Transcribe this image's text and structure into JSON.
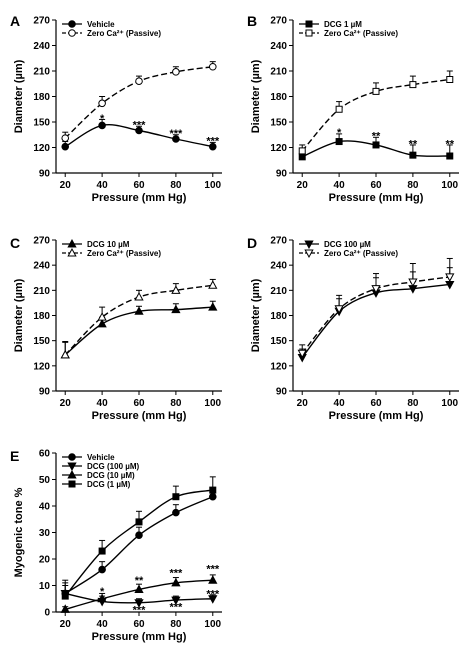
{
  "chart_data": [
    {
      "panel": "A",
      "type": "line",
      "x": [
        20,
        40,
        60,
        80,
        100
      ],
      "xlabel": "Pressure (mm Hg)",
      "ylabel": "Diameter (µm)",
      "xlim": [
        15,
        105
      ],
      "ylim": [
        90,
        270
      ],
      "yticks": [
        90,
        120,
        150,
        180,
        210,
        240,
        270
      ],
      "series": [
        {
          "name": "Vehicle",
          "style": "solid",
          "marker": "circle-filled",
          "values": [
            121,
            146,
            140,
            130,
            121
          ],
          "errors": [
            6,
            7,
            5,
            5,
            5
          ]
        },
        {
          "name": "Zero Ca²⁺ (Passive)",
          "style": "dashed",
          "marker": "circle-open",
          "values": [
            131,
            172,
            198,
            209,
            215
          ],
          "errors": [
            7,
            8,
            6,
            6,
            6
          ]
        }
      ],
      "annotations": [
        {
          "x": 40,
          "text": "*",
          "y": 155
        },
        {
          "x": 60,
          "text": "***",
          "y": 147
        },
        {
          "x": 80,
          "text": "***",
          "y": 137
        },
        {
          "x": 100,
          "text": "***",
          "y": 128
        }
      ],
      "legend": "top-left"
    },
    {
      "panel": "B",
      "type": "line",
      "x": [
        20,
        40,
        60,
        80,
        100
      ],
      "xlabel": "Pressure (mm Hg)",
      "ylabel": "Diameter (µm)",
      "xlim": [
        15,
        105
      ],
      "ylim": [
        90,
        270
      ],
      "yticks": [
        90,
        120,
        150,
        180,
        210,
        240,
        270
      ],
      "series": [
        {
          "name": "DCG 1 µM",
          "style": "solid",
          "marker": "square-filled",
          "values": [
            109,
            127,
            123,
            111,
            110
          ],
          "errors": [
            5,
            9,
            9,
            12,
            13
          ]
        },
        {
          "name": "Zero Ca²⁺ (Passive)",
          "style": "dashed",
          "marker": "square-open",
          "values": [
            116,
            165,
            186,
            194,
            200
          ],
          "errors": [
            7,
            9,
            10,
            10,
            10
          ]
        }
      ],
      "annotations": [
        {
          "x": 40,
          "text": "*",
          "y": 138
        },
        {
          "x": 60,
          "text": "**",
          "y": 134
        },
        {
          "x": 80,
          "text": "**",
          "y": 125
        },
        {
          "x": 100,
          "text": "**",
          "y": 125
        }
      ],
      "legend": "top-left"
    },
    {
      "panel": "C",
      "type": "line",
      "x": [
        20,
        40,
        60,
        80,
        100
      ],
      "xlabel": "Pressure (mm Hg)",
      "ylabel": "Diameter (µm)",
      "xlim": [
        15,
        105
      ],
      "ylim": [
        90,
        270
      ],
      "yticks": [
        90,
        120,
        150,
        180,
        210,
        240,
        270
      ],
      "series": [
        {
          "name": "DCG 10 µM",
          "style": "solid",
          "marker": "triangle-up-filled",
          "values": [
            133,
            170,
            185,
            187,
            190
          ],
          "errors": [
            15,
            8,
            6,
            7,
            7
          ]
        },
        {
          "name": "Zero Ca²⁺ (Passive)",
          "style": "dashed",
          "marker": "triangle-up-open",
          "values": [
            133,
            178,
            202,
            210,
            216
          ],
          "errors": [
            16,
            12,
            8,
            8,
            7
          ]
        }
      ],
      "annotations": [],
      "legend": "top-left"
    },
    {
      "panel": "D",
      "type": "line",
      "x": [
        20,
        40,
        60,
        80,
        100
      ],
      "xlabel": "Pressure (mm Hg)",
      "ylabel": "Diameter (µm)",
      "xlim": [
        15,
        105
      ],
      "ylim": [
        90,
        270
      ],
      "yticks": [
        90,
        120,
        150,
        180,
        210,
        240,
        270
      ],
      "series": [
        {
          "name": "DCG 100 µM",
          "style": "solid",
          "marker": "triangle-down-filled",
          "values": [
            130,
            185,
            207,
            212,
            217
          ],
          "errors": [
            10,
            15,
            18,
            20,
            20
          ]
        },
        {
          "name": "Zero Ca²⁺ (Passive)",
          "style": "dashed",
          "marker": "triangle-down-open",
          "values": [
            135,
            188,
            212,
            220,
            226
          ],
          "errors": [
            10,
            16,
            18,
            22,
            22
          ]
        }
      ],
      "annotations": [],
      "legend": "top-left"
    },
    {
      "panel": "E",
      "type": "line",
      "x": [
        20,
        40,
        60,
        80,
        100
      ],
      "xlabel": "Pressure (mm Hg)",
      "ylabel": "Myogenic tone %",
      "xlim": [
        15,
        105
      ],
      "ylim": [
        0,
        60
      ],
      "yticks": [
        0,
        10,
        20,
        30,
        40,
        50,
        60
      ],
      "series": [
        {
          "name": "Vehicle",
          "style": "solid",
          "marker": "circle-filled",
          "values": [
            7,
            16,
            29,
            37.5,
            43.5
          ],
          "errors": [
            4,
            3,
            3,
            3,
            3
          ]
        },
        {
          "name": "DCG (100 µM)",
          "style": "solid",
          "marker": "triangle-down-filled",
          "values": [
            7,
            4,
            3.5,
            4.5,
            5
          ],
          "errors": [
            3,
            2,
            1.5,
            1.5,
            1.5
          ]
        },
        {
          "name": "DCG (10 µM)",
          "style": "solid",
          "marker": "triangle-up-filled",
          "values": [
            1,
            5,
            8.5,
            11,
            12
          ],
          "errors": [
            1,
            2,
            2,
            2,
            2
          ]
        },
        {
          "name": "DCG (1 µM)",
          "style": "solid",
          "marker": "square-filled",
          "values": [
            6,
            23,
            34,
            43.5,
            46
          ],
          "errors": [
            6,
            4,
            4,
            4,
            5
          ]
        }
      ],
      "annotations": [
        {
          "x": 40,
          "text": "*",
          "y": 8
        },
        {
          "x": 60,
          "text": "**",
          "y": 12
        },
        {
          "x": 60,
          "text": "***",
          "y": 1
        },
        {
          "x": 80,
          "text": "***",
          "y": 15
        },
        {
          "x": 80,
          "text": "***",
          "y": 2
        },
        {
          "x": 100,
          "text": "***",
          "y": 16.5
        },
        {
          "x": 100,
          "text": "***",
          "y": 7
        }
      ],
      "legend": "top-left"
    }
  ]
}
